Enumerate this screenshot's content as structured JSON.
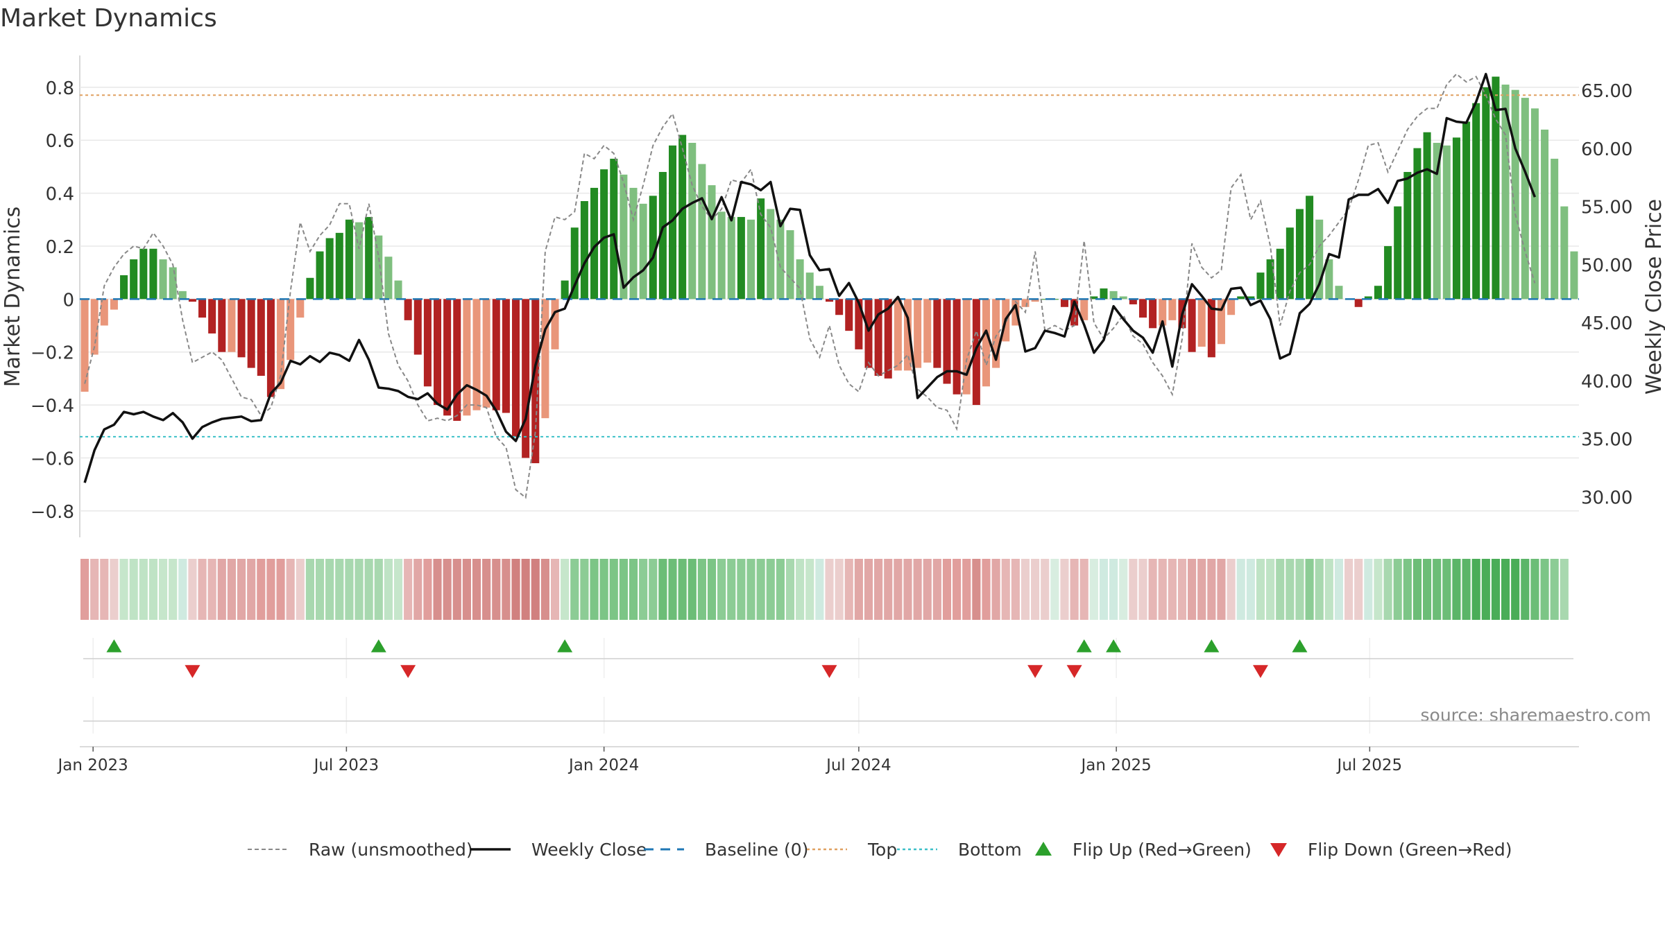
{
  "title": "Market Dynamics",
  "source": "source: sharemaestro.com",
  "chart_data": {
    "type": "bar",
    "x_start": "2022-12-26",
    "x_interval": "weekly",
    "left_axis": {
      "label": "Market Dynamics",
      "ylim": [
        -0.9,
        0.92
      ],
      "ticks": [
        -0.8,
        -0.6,
        -0.4,
        -0.2,
        0,
        0.2,
        0.4,
        0.6,
        0.8
      ],
      "tick_labels": [
        "−0.8",
        "−0.6",
        "−0.4",
        "−0.2",
        "0",
        "0.2",
        "0.4",
        "0.6",
        "0.8"
      ]
    },
    "right_axis": {
      "label": "Weekly Close Price",
      "ylim": [
        26.5,
        68.0
      ],
      "ticks": [
        30,
        35,
        40,
        45,
        50,
        55,
        60,
        65
      ],
      "tick_labels": [
        "30.00",
        "35.00",
        "40.00",
        "45.00",
        "50.00",
        "55.00",
        "60.00",
        "65.00"
      ]
    },
    "x_ticks": [
      {
        "date": "2023-01-01",
        "label": "Jan 2023"
      },
      {
        "date": "2023-07-01",
        "label": "Jul 2023"
      },
      {
        "date": "2024-01-01",
        "label": "Jan 2024"
      },
      {
        "date": "2024-07-01",
        "label": "Jul 2024"
      },
      {
        "date": "2025-01-01",
        "label": "Jan 2025"
      },
      {
        "date": "2025-07-01",
        "label": "Jul 2025"
      }
    ],
    "levels": {
      "top": 0.77,
      "bottom": -0.52,
      "baseline": 0
    },
    "dynamics": [
      -0.35,
      -0.21,
      -0.1,
      -0.04,
      0.09,
      0.15,
      0.19,
      0.19,
      0.15,
      0.12,
      0.03,
      -0.01,
      -0.07,
      -0.13,
      -0.2,
      -0.2,
      -0.22,
      -0.26,
      -0.29,
      -0.37,
      -0.34,
      -0.23,
      -0.07,
      0.08,
      0.18,
      0.23,
      0.25,
      0.3,
      0.29,
      0.31,
      0.24,
      0.16,
      0.07,
      -0.08,
      -0.21,
      -0.33,
      -0.4,
      -0.44,
      -0.46,
      -0.44,
      -0.42,
      -0.41,
      -0.42,
      -0.43,
      -0.52,
      -0.6,
      -0.62,
      -0.45,
      -0.19,
      0.07,
      0.27,
      0.37,
      0.42,
      0.49,
      0.53,
      0.47,
      0.42,
      0.36,
      0.39,
      0.48,
      0.58,
      0.62,
      0.59,
      0.51,
      0.43,
      0.33,
      0.31,
      0.31,
      0.3,
      0.38,
      0.34,
      0.3,
      0.26,
      0.15,
      0.1,
      0.05,
      -0.01,
      -0.06,
      -0.12,
      -0.19,
      -0.26,
      -0.29,
      -0.3,
      -0.27,
      -0.27,
      -0.26,
      -0.24,
      -0.26,
      -0.32,
      -0.36,
      -0.36,
      -0.4,
      -0.33,
      -0.26,
      -0.16,
      -0.1,
      -0.03,
      -0.01,
      0,
      0,
      -0.03,
      -0.1,
      -0.08,
      0.01,
      0.04,
      0.03,
      0.01,
      -0.02,
      -0.07,
      -0.11,
      -0.1,
      -0.08,
      -0.11,
      -0.2,
      -0.18,
      -0.22,
      -0.17,
      -0.06,
      0.01,
      0.01,
      0.1,
      0.15,
      0.19,
      0.27,
      0.34,
      0.39,
      0.3,
      0.15,
      0.05,
      0,
      -0.03,
      0.01,
      0.05,
      0.2,
      0.35,
      0.48,
      0.57,
      0.63,
      0.59,
      0.58,
      0.61,
      0.67,
      0.74,
      0.8,
      0.84,
      0.81,
      0.79,
      0.76,
      0.72,
      0.64,
      0.53,
      0.35,
      0.18
    ],
    "raw": [
      -0.32,
      -0.18,
      0.05,
      0.12,
      0.17,
      0.2,
      0.19,
      0.25,
      0.2,
      0.13,
      -0.08,
      -0.24,
      -0.22,
      -0.2,
      -0.23,
      -0.3,
      -0.37,
      -0.38,
      -0.44,
      -0.41,
      -0.29,
      0.03,
      0.29,
      0.18,
      0.24,
      0.28,
      0.36,
      0.36,
      0.19,
      0.36,
      0.16,
      -0.13,
      -0.25,
      -0.31,
      -0.4,
      -0.46,
      -0.45,
      -0.46,
      -0.44,
      -0.4,
      -0.4,
      -0.41,
      -0.52,
      -0.56,
      -0.72,
      -0.75,
      -0.5,
      0.18,
      0.31,
      0.3,
      0.33,
      0.55,
      0.53,
      0.58,
      0.55,
      0.44,
      0.3,
      0.43,
      0.58,
      0.65,
      0.7,
      0.57,
      0.43,
      0.35,
      0.3,
      0.34,
      0.45,
      0.44,
      0.49,
      0.32,
      0.27,
      0.12,
      0.08,
      0.04,
      -0.15,
      -0.22,
      -0.1,
      -0.25,
      -0.32,
      -0.35,
      -0.24,
      -0.29,
      -0.27,
      -0.25,
      -0.21,
      -0.34,
      -0.37,
      -0.41,
      -0.42,
      -0.49,
      -0.23,
      -0.12,
      -0.25,
      -0.14,
      -0.09,
      -0.01,
      -0.05,
      0.18,
      -0.12,
      -0.1,
      -0.12,
      -0.1,
      0.22,
      -0.09,
      -0.15,
      -0.11,
      -0.06,
      -0.14,
      -0.17,
      -0.24,
      -0.29,
      -0.36,
      -0.15,
      0.21,
      0.12,
      0.08,
      0.11,
      0.42,
      0.47,
      0.3,
      0.37,
      0.2,
      -0.1,
      0.03,
      0.1,
      0.13,
      0.2,
      0.24,
      0.29,
      0.34,
      0.45,
      0.58,
      0.59,
      0.48,
      0.56,
      0.64,
      0.69,
      0.72,
      0.72,
      0.81,
      0.85,
      0.82,
      0.84,
      0.77,
      0.68,
      0.62,
      0.32,
      0.18,
      0.06
    ],
    "close": [
      31.2,
      34.0,
      35.8,
      36.2,
      37.3,
      37.1,
      37.3,
      36.9,
      36.6,
      37.2,
      36.4,
      35.0,
      36.0,
      36.4,
      36.7,
      36.8,
      36.9,
      36.5,
      36.6,
      38.9,
      39.8,
      41.7,
      41.4,
      42.1,
      41.6,
      42.4,
      42.2,
      41.7,
      43.5,
      41.8,
      39.4,
      39.3,
      39.1,
      38.6,
      38.4,
      38.9,
      38.0,
      37.5,
      38.8,
      39.6,
      39.2,
      38.7,
      37.4,
      35.6,
      34.8,
      36.7,
      41.3,
      44.4,
      45.9,
      46.2,
      48.2,
      50.1,
      51.5,
      52.3,
      52.6,
      48.0,
      48.9,
      49.5,
      50.6,
      53.2,
      53.8,
      54.8,
      55.3,
      55.7,
      53.9,
      55.8,
      53.8,
      57.1,
      56.9,
      56.4,
      57.1,
      53.3,
      54.8,
      54.7,
      50.8,
      49.5,
      49.6,
      47.3,
      48.4,
      46.7,
      44.3,
      45.7,
      46.2,
      47.2,
      45.4,
      38.5,
      39.4,
      40.3,
      40.8,
      40.8,
      40.5,
      42.8,
      44.3,
      41.8,
      45.3,
      46.5,
      42.5,
      42.8,
      44.3,
      44.1,
      43.8,
      46.8,
      44.8,
      42.4,
      43.5,
      46.4,
      45.3,
      44.3,
      43.7,
      42.4,
      45.1,
      41.2,
      45.7,
      48.3,
      47.3,
      46.2,
      46.1,
      47.9,
      48.0,
      46.5,
      46.9,
      45.3,
      41.9,
      42.3,
      45.8,
      46.6,
      48.3,
      50.9,
      50.6,
      55.6,
      56.0,
      56.0,
      56.5,
      55.3,
      57.2,
      57.4,
      57.9,
      58.2,
      57.8,
      62.6,
      62.3,
      62.2,
      64.0,
      66.4,
      63.3,
      63.4,
      60.0,
      58.0,
      55.8
    ],
    "heat_colors": [
      "#e19e9c",
      "#e6b6b5",
      "#e6b6b5",
      "#ebcecd",
      "#c6e6cb",
      "#bfe3c5",
      "#bfe3c5",
      "#bfe3c5",
      "#c6e6cb",
      "#c6e6cb",
      "#cfeae0",
      "#ebcecd",
      "#e6b6b5",
      "#e6b6b5",
      "#e1a7a6",
      "#e1a7a6",
      "#e1a7a6",
      "#e1a7a6",
      "#e19e9c",
      "#e19e9c",
      "#e19e9c",
      "#e6b6b5",
      "#ebcecd",
      "#a8d8af",
      "#a8d8af",
      "#a8d8af",
      "#a8d8af",
      "#a8d8af",
      "#a8d8af",
      "#a8d8af",
      "#a8d8af",
      "#bfe3c5",
      "#c6e6cb",
      "#e6b6b5",
      "#e1a7a6",
      "#e19e9c",
      "#d78f8d",
      "#d78f8d",
      "#d78f8d",
      "#d78f8d",
      "#d78f8d",
      "#d78f8d",
      "#d78f8d",
      "#d78f8d",
      "#d1807f",
      "#d1807f",
      "#d1807f",
      "#d78f8d",
      "#e6b6b5",
      "#c6e6cb",
      "#8ccc95",
      "#8ccc95",
      "#7cc586",
      "#7cc586",
      "#7cc586",
      "#7cc586",
      "#7cc586",
      "#8ccc95",
      "#8ccc95",
      "#6cbd77",
      "#6cbd77",
      "#6cbd77",
      "#6cbd77",
      "#7cc586",
      "#7cc586",
      "#8ccc95",
      "#8ccc95",
      "#8ccc95",
      "#8ccc95",
      "#8ccc95",
      "#8ccc95",
      "#8ccc95",
      "#a8d8af",
      "#bfe3c5",
      "#c6e6cb",
      "#cfeae0",
      "#ebcecd",
      "#ebcecd",
      "#e6b6b5",
      "#e1a7a6",
      "#e1a7a6",
      "#e1a7a6",
      "#e1a7a6",
      "#e1a7a6",
      "#e1a7a6",
      "#e1a7a6",
      "#e1a7a6",
      "#e1a7a6",
      "#e19e9c",
      "#e19e9c",
      "#e19e9c",
      "#d78f8d",
      "#e19e9c",
      "#e1a7a6",
      "#e6b6b5",
      "#e6b6b5",
      "#ebcecd",
      "#ebcecd",
      "#ebcecd",
      "#d8ede0",
      "#ebcecd",
      "#e6b6b5",
      "#e6b6b5",
      "#d8ede0",
      "#cfeae0",
      "#cfeae0",
      "#d8ede0",
      "#ebcecd",
      "#ebcecd",
      "#e6b6b5",
      "#e6b6b5",
      "#e6b6b5",
      "#e6b6b5",
      "#e1a7a6",
      "#e1a7a6",
      "#e1a7a6",
      "#e1a7a6",
      "#ebcecd",
      "#cfeae0",
      "#cfeae0",
      "#bfe3c5",
      "#bfe3c5",
      "#a8d8af",
      "#a8d8af",
      "#a8d8af",
      "#8ccc95",
      "#a8d8af",
      "#bfe3c5",
      "#cfeae0",
      "#ebcecd",
      "#ebcecd",
      "#cfeae0",
      "#c6e6cb",
      "#a8d8af",
      "#8ccc95",
      "#7cc586",
      "#6cbd77",
      "#6cbd77",
      "#6cbd77",
      "#6cbd77",
      "#5bb568",
      "#5bb568",
      "#4aad58",
      "#4aad58",
      "#4aad58",
      "#4aad58",
      "#4aad58",
      "#5bb568",
      "#6cbd77",
      "#7cc586",
      "#8ccc95",
      "#a8d8af"
    ],
    "flip_up_weeks": [
      3,
      30,
      49,
      102,
      105,
      115,
      124
    ],
    "flip_down_weeks": [
      11,
      33,
      76,
      97,
      101,
      120
    ],
    "colors": {
      "strong_green": "#228b22",
      "light_green": "#7fbf7f",
      "strong_red": "#b22222",
      "light_red": "#e9967a",
      "close_line": "#111111",
      "raw_line": "#888888",
      "baseline": "#1f77b4",
      "top": "#e0a060",
      "bottom": "#3cc0c8",
      "flip_up": "#2ca02c",
      "flip_down": "#d62728"
    },
    "legend": {
      "placement": "bottom-center",
      "items": [
        {
          "label": "Raw (unsmoothed)",
          "kind": "dash-gray"
        },
        {
          "label": "Weekly Close",
          "kind": "line-black"
        },
        {
          "label": "Baseline (0)",
          "kind": "dash-blue"
        },
        {
          "label": "Top",
          "kind": "dot-orange"
        },
        {
          "label": "Bottom",
          "kind": "dot-cyan"
        },
        {
          "label": "Flip Up (Red→Green)",
          "kind": "tri-up"
        },
        {
          "label": "Flip Down (Green→Red)",
          "kind": "tri-down"
        }
      ]
    }
  }
}
